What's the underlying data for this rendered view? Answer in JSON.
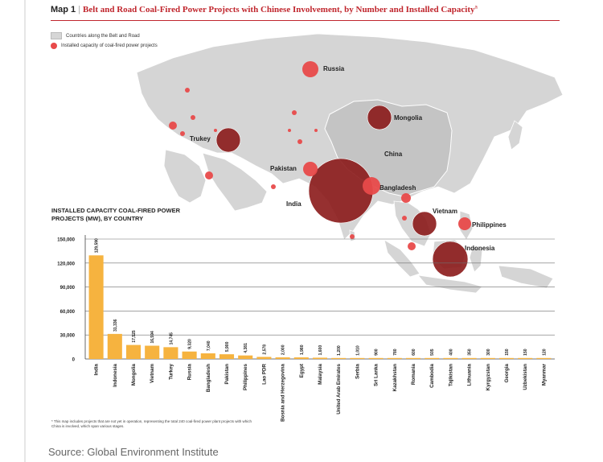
{
  "map": {
    "number": "Map 1",
    "title": "Belt and Road Coal-Fired Power Projects with Chinese Involvement, by Number and Installed Capacity",
    "title_superscript": "a",
    "title_color": "#c0262d",
    "legend": {
      "land_label": "Countries along the Belt and Road",
      "dot_label": "Installed capacity of coal-fired power projects"
    },
    "country_labels": [
      "Russia",
      "Mongolia",
      "Trukey",
      "China",
      "Pakistan",
      "Bangladesh",
      "India",
      "Vietnam",
      "Philippines",
      "Indonesia"
    ],
    "colors": {
      "land": "#d4d4d4",
      "land_edge": "#ffffff",
      "small_dot": "#e84a4a",
      "big_dot": "#8b1a1a"
    }
  },
  "chart_data": {
    "type": "bar",
    "title": "INSTALLED CAPACITY COAL-FIRED POWER\nPROJECTS (MW), BY COUNTRY",
    "categories": [
      "India",
      "Indonesia",
      "Mongolia",
      "Vietnam",
      "Turkey",
      "Russia",
      "Bangladesh",
      "Pakistan",
      "Philippines",
      "Lao PDR",
      "Bosnia and Herzegovina",
      "Egypt",
      "Malaysia",
      "United Arab Emirates",
      "Serbia",
      "Sri Lanka",
      "Kazakhstan",
      "Romania",
      "Cambodia",
      "Tajikistan",
      "Lithuania",
      "Kyrgyzstan",
      "Georgia",
      "Uzbekistan",
      "Myanmar"
    ],
    "values": [
      129590,
      31336,
      17525,
      16594,
      14745,
      9320,
      7040,
      5900,
      4381,
      2578,
      2000,
      1980,
      1600,
      1200,
      1010,
      900,
      780,
      600,
      505,
      400,
      350,
      300,
      150,
      150,
      120
    ],
    "value_labels": [
      "129,590",
      "31,336",
      "17,525",
      "16,594",
      "14,745",
      "9,320",
      "7,040",
      "5,900",
      "4,381",
      "2,578",
      "2,000",
      "1,980",
      "1,600",
      "1,200",
      "1,010",
      "900",
      "780",
      "600",
      "505",
      "400",
      "350",
      "300",
      "150",
      "150",
      "120"
    ],
    "y_ticks": [
      "150,000",
      "120,000",
      "90,000",
      "60,000",
      "30,000",
      "0"
    ],
    "ylim": [
      0,
      150000
    ],
    "bar_color": "#f6b33f",
    "grid": true
  },
  "footnote": "* This map includes projects that are not yet in operation, representing the total 240 coal-fired power plant projects with which China is involved, which span various stages.",
  "source": "Source: Global Environment Institute"
}
